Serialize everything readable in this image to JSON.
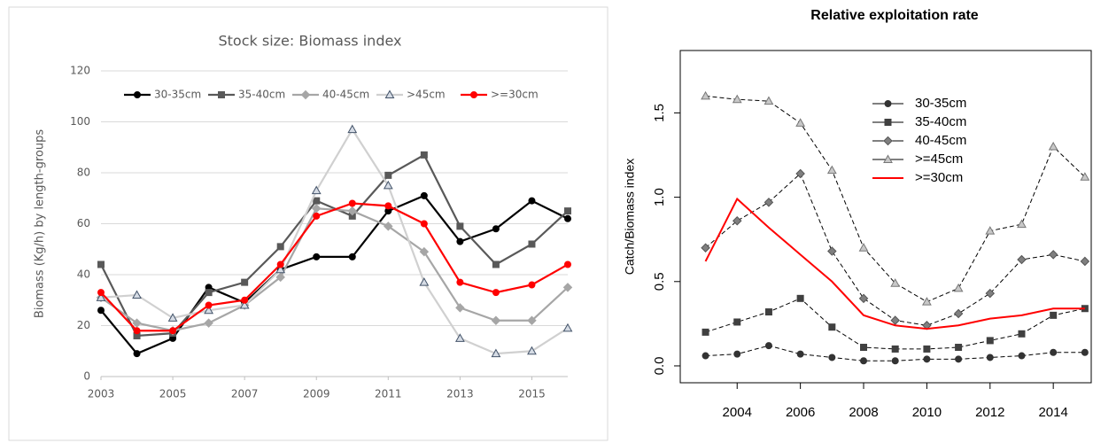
{
  "chart_data": [
    {
      "type": "line",
      "title": "Stock size: Biomass index",
      "y_label": "Biomass (Kg/h) by length-groups",
      "x": [
        2003,
        2004,
        2005,
        2006,
        2007,
        2008,
        2009,
        2010,
        2011,
        2012,
        2013,
        2014,
        2015,
        2016
      ],
      "xlim": [
        2003,
        2016
      ],
      "xticks": [
        2003,
        2005,
        2007,
        2009,
        2011,
        2013,
        2015
      ],
      "ylim": [
        0,
        120
      ],
      "yticks": [
        0,
        20,
        40,
        60,
        80,
        100,
        120
      ],
      "grid": true,
      "legend": "top",
      "series": [
        {
          "name": "30-35cm",
          "color": "#000000",
          "marker": "circle",
          "marker_fill": "#000000",
          "marker_edge": "#000000",
          "values": [
            26,
            9,
            15,
            35,
            29,
            42,
            47,
            47,
            65,
            71,
            53,
            58,
            69,
            62
          ]
        },
        {
          "name": "35-40cm",
          "color": "#595959",
          "marker": "square",
          "marker_fill": "#595959",
          "marker_edge": "#595959",
          "values": [
            44,
            16,
            17,
            33,
            37,
            51,
            69,
            63,
            79,
            87,
            59,
            44,
            52,
            65
          ]
        },
        {
          "name": "40-45cm",
          "color": "#a6a6a6",
          "marker": "diamond",
          "marker_fill": "#a6a6a6",
          "marker_edge": "#a6a6a6",
          "values": [
            31,
            21,
            18,
            21,
            28,
            39,
            66,
            65,
            59,
            49,
            27,
            22,
            22,
            35
          ]
        },
        {
          "name": ">45cm",
          "color": "#d0d0d0",
          "marker": "triangle",
          "marker_fill": "#d6dce5",
          "marker_edge": "#44546a",
          "values": [
            31,
            32,
            23,
            26,
            28,
            42,
            73,
            97,
            75,
            37,
            15,
            9,
            10,
            19
          ]
        },
        {
          "name": ">=30cm",
          "color": "#ff0000",
          "marker": "circle",
          "marker_fill": "#ff0000",
          "marker_edge": "#ff0000",
          "values": [
            33,
            18,
            18,
            28,
            30,
            44,
            63,
            68,
            67,
            60,
            37,
            33,
            36,
            44
          ]
        }
      ]
    },
    {
      "type": "line",
      "title": "Relative exploitation rate",
      "y_label": "Catch/Biomass index",
      "x": [
        2003,
        2004,
        2005,
        2006,
        2007,
        2008,
        2009,
        2010,
        2011,
        2012,
        2013,
        2014,
        2015
      ],
      "xlim": [
        2002.2,
        2015.2
      ],
      "xticks": [
        2004,
        2006,
        2008,
        2010,
        2012,
        2014
      ],
      "ylim": [
        -0.1,
        1.87
      ],
      "yticks": [
        {
          "value": 0,
          "label": "0.0"
        },
        {
          "value": 0.5,
          "label": "0.5"
        },
        {
          "value": 1,
          "label": "1.0"
        },
        {
          "value": 1.5,
          "label": "1.5"
        }
      ],
      "grid": false,
      "legend": "top",
      "series": [
        {
          "name": "30-35cm",
          "color": "#000000",
          "marker": "circle",
          "marker_fill": "#333333",
          "marker_edge": "#333333",
          "values": [
            0.06,
            0.07,
            0.12,
            0.07,
            0.05,
            0.03,
            0.03,
            0.04,
            0.04,
            0.05,
            0.06,
            0.08,
            0.08
          ]
        },
        {
          "name": "35-40cm",
          "color": "#000000",
          "marker": "square",
          "marker_fill": "#404040",
          "marker_edge": "#404040",
          "values": [
            0.2,
            0.26,
            0.32,
            0.4,
            0.23,
            0.11,
            0.1,
            0.1,
            0.11,
            0.15,
            0.19,
            0.3,
            0.34
          ]
        },
        {
          "name": "40-45cm",
          "color": "#000000",
          "marker": "diamond",
          "marker_fill": "#7f7f7f",
          "marker_edge": "#555555",
          "values": [
            0.7,
            0.86,
            0.97,
            1.14,
            0.68,
            0.4,
            0.27,
            0.24,
            0.31,
            0.43,
            0.63,
            0.66,
            0.62
          ]
        },
        {
          "name": ">=45cm",
          "color": "#000000",
          "marker": "triangle",
          "marker_fill": "#c8c8c8",
          "marker_edge": "#777777",
          "values": [
            1.6,
            1.58,
            1.57,
            1.44,
            1.16,
            0.7,
            0.49,
            0.38,
            0.46,
            0.8,
            0.84,
            1.3,
            1.12
          ]
        },
        {
          "name": ">=30cm",
          "color": "#ff0000",
          "marker": "none",
          "values": [
            0.62,
            0.99,
            0.82,
            0.66,
            0.5,
            0.3,
            0.24,
            0.22,
            0.24,
            0.28,
            0.3,
            0.34,
            0.34
          ]
        }
      ]
    }
  ]
}
